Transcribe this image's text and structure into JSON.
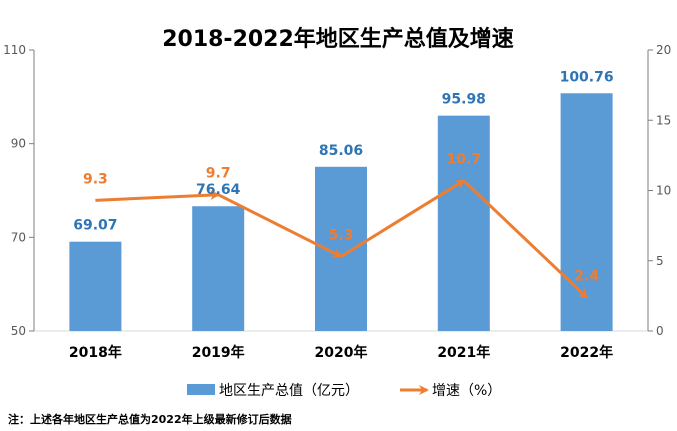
{
  "chart_data": {
    "type": "bar+line",
    "title": "2018-2022年地区生产总值及增速",
    "categories": [
      "2018年",
      "2019年",
      "2020年",
      "2021年",
      "2022年"
    ],
    "series": [
      {
        "name": "地区生产总值（亿元）",
        "type": "bar",
        "axis": "left",
        "values": [
          69.07,
          76.64,
          85.06,
          95.98,
          100.76
        ],
        "labels": [
          "69.07",
          "76.64",
          "85.06",
          "95.98",
          "100.76"
        ],
        "color": "#5b9bd5",
        "label_color": "#2e75b6"
      },
      {
        "name": "增速（%）",
        "type": "line",
        "axis": "right",
        "values": [
          9.3,
          9.7,
          5.3,
          10.7,
          2.4
        ],
        "labels": [
          "9.3",
          "9.7",
          "5.3",
          "10.7",
          "2.4"
        ],
        "color": "#ed7d31"
      }
    ],
    "y_left": {
      "min": 50,
      "max": 110,
      "ticks": [
        50,
        70,
        90,
        110
      ],
      "tick_labels": [
        "50",
        "70",
        "90",
        "110"
      ]
    },
    "y_right": {
      "min": 0,
      "max": 20,
      "ticks": [
        0,
        5,
        10,
        15,
        20
      ],
      "tick_labels": [
        "0",
        "5",
        "10",
        "15",
        "20"
      ]
    },
    "grid": false,
    "legend_position": "bottom",
    "note": "注：上述各年地区生产总值为2022年上级最新修订后数据"
  }
}
